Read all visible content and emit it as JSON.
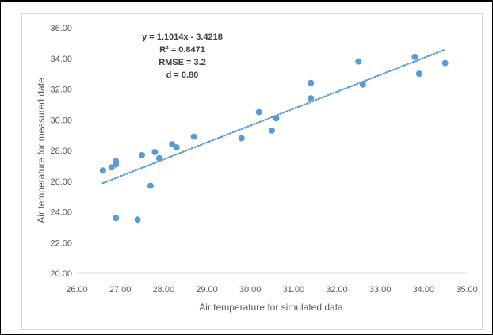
{
  "chart_data": {
    "type": "scatter",
    "xlabel": "Air temperature  for simulated data",
    "ylabel": "Air temperature  for measured date",
    "xlim": [
      26,
      35
    ],
    "ylim": [
      20,
      36
    ],
    "x_ticks": [
      "26.00",
      "27.00",
      "28.00",
      "29.00",
      "30.00",
      "31.00",
      "32.00",
      "33.00",
      "34.00",
      "35.00"
    ],
    "y_ticks": [
      "20.00",
      "22.00",
      "24.00",
      "26.00",
      "28.00",
      "30.00",
      "32.00",
      "34.00",
      "36.00"
    ],
    "grid": false,
    "marker_color": "#5b9bd5",
    "trendline_color": "#5b9bd5",
    "annotations": [
      "y = 1.1014x - 3.4218",
      "R² = 0.8471",
      "RMSE = 3.2",
      "d = 0.80"
    ],
    "trendline": {
      "slope": 1.1014,
      "intercept": -3.4218,
      "x_range": [
        26.6,
        34.5
      ]
    },
    "points": [
      [
        26.6,
        26.7
      ],
      [
        26.8,
        26.9
      ],
      [
        26.9,
        27.1
      ],
      [
        26.9,
        27.3
      ],
      [
        26.9,
        23.6
      ],
      [
        27.4,
        23.5
      ],
      [
        27.5,
        27.7
      ],
      [
        27.7,
        25.7
      ],
      [
        27.8,
        27.9
      ],
      [
        27.9,
        27.5
      ],
      [
        28.2,
        28.4
      ],
      [
        28.3,
        28.2
      ],
      [
        28.7,
        28.9
      ],
      [
        29.8,
        28.8
      ],
      [
        30.2,
        30.5
      ],
      [
        30.5,
        29.3
      ],
      [
        30.6,
        30.1
      ],
      [
        31.4,
        32.4
      ],
      [
        31.4,
        31.4
      ],
      [
        32.5,
        33.8
      ],
      [
        32.6,
        32.3
      ],
      [
        33.8,
        34.1
      ],
      [
        33.9,
        33.0
      ],
      [
        34.5,
        33.7
      ]
    ]
  }
}
